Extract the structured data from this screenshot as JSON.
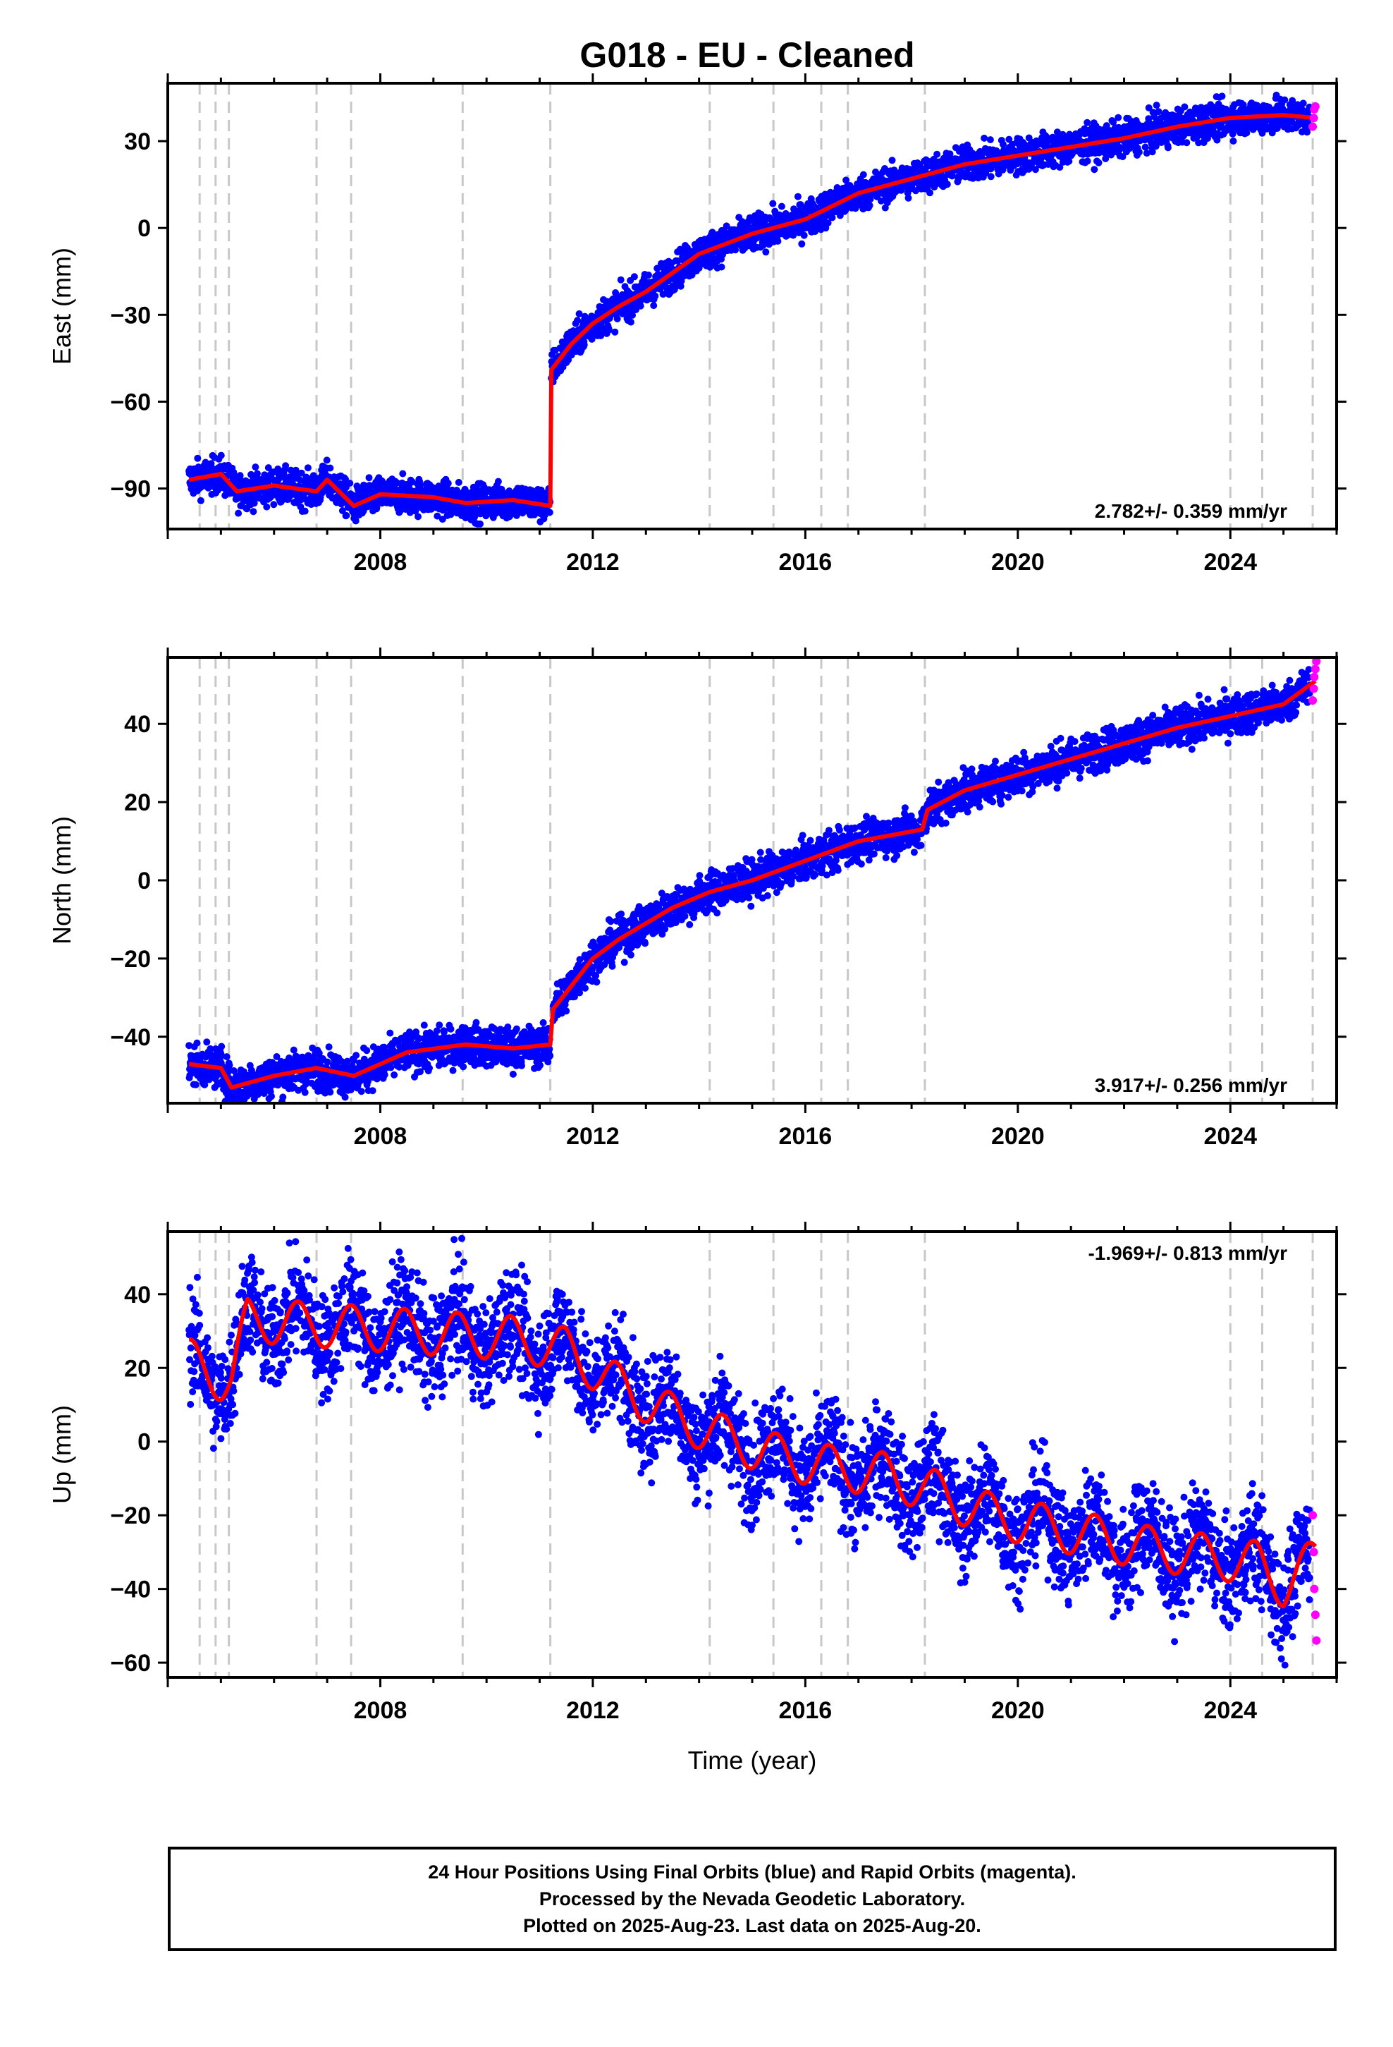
{
  "title": "G018  - EU - Cleaned",
  "colors": {
    "final_points": "#0000ff",
    "rapid_points": "#ff00ff",
    "model_line": "#ff0000",
    "event_lines": "#c8c8c8"
  },
  "footer": {
    "line1": "24 Hour Positions Using Final Orbits (blue) and Rapid Orbits (magenta).",
    "line2": "Processed by the Nevada Geodetic Laboratory.",
    "line3": "Plotted on 2025-Aug-23. Last data on 2025-Aug-20."
  },
  "chart_data": [
    {
      "type": "scatter",
      "ylabel": "East (mm)",
      "xlabel": "",
      "xlim": [
        2004.0,
        2026.0
      ],
      "ylim": [
        -104,
        50
      ],
      "xticks": [
        "2008",
        "2012",
        "2016",
        "2020",
        "2024"
      ],
      "yticks": [
        "30",
        "0",
        "−30",
        "−60",
        "−90"
      ],
      "rate_label": "2.782+/- 0.359 mm/yr",
      "rate_position": "bottom-right",
      "event_lines_x": [
        2004.6,
        2004.9,
        2005.15,
        2006.8,
        2007.45,
        2009.55,
        2011.2,
        2014.2,
        2015.4,
        2016.3,
        2016.8,
        2018.25,
        2024.0,
        2024.6,
        2025.55
      ],
      "model_line": {
        "x": [
          2004.4,
          2005.0,
          2005.3,
          2006.0,
          2006.8,
          2007.0,
          2007.5,
          2008.0,
          2009.0,
          2009.6,
          2010.5,
          2011.2,
          2011.22,
          2011.6,
          2012.0,
          2012.5,
          2013.0,
          2014.0,
          2015.0,
          2016.0,
          2017.0,
          2018.0,
          2019.0,
          2020.0,
          2021.0,
          2022.0,
          2023.0,
          2024.0,
          2025.0,
          2025.6
        ],
        "y": [
          -87,
          -85,
          -91,
          -89,
          -91,
          -87,
          -96,
          -92,
          -93,
          -95,
          -94,
          -96,
          -49,
          -40,
          -33,
          -27,
          -22,
          -9,
          -2,
          3,
          12,
          17,
          22,
          25,
          28,
          31,
          35,
          38,
          39,
          38
        ]
      },
      "final_points": {
        "segments": [
          {
            "x_start": 2004.4,
            "x_end": 2011.2,
            "y_start": -87,
            "y_end": -95,
            "spread": 3
          },
          {
            "x_start": 2011.22,
            "x_end": 2012.0,
            "y_start": -47,
            "y_end": -31,
            "spread": 3
          },
          {
            "x_start": 2012.0,
            "x_end": 2025.5,
            "y_start": -30,
            "y_end": 40,
            "spread": 3
          }
        ]
      },
      "rapid_points": {
        "x": [
          2025.55,
          2025.57,
          2025.58,
          2025.6
        ],
        "y": [
          35,
          38,
          41,
          42
        ]
      }
    },
    {
      "type": "scatter",
      "ylabel": "North (mm)",
      "xlabel": "",
      "xlim": [
        2004.0,
        2026.0
      ],
      "ylim": [
        -57,
        57
      ],
      "xticks": [
        "2008",
        "2012",
        "2016",
        "2020",
        "2024"
      ],
      "yticks": [
        "40",
        "20",
        "0",
        "−20",
        "−40"
      ],
      "rate_label": "3.917+/- 0.256 mm/yr",
      "rate_position": "bottom-right",
      "event_lines_x": [
        2004.6,
        2004.9,
        2005.15,
        2006.8,
        2007.45,
        2009.55,
        2011.2,
        2014.2,
        2015.4,
        2016.3,
        2016.8,
        2018.25,
        2024.0,
        2024.6,
        2025.55
      ],
      "model_line": {
        "x": [
          2004.4,
          2005.0,
          2005.2,
          2006.0,
          2006.8,
          2007.5,
          2008.5,
          2009.6,
          2010.5,
          2011.2,
          2011.25,
          2012.0,
          2012.5,
          2013.5,
          2014.2,
          2015.0,
          2016.0,
          2017.0,
          2018.2,
          2018.3,
          2019.0,
          2020.0,
          2021.0,
          2022.0,
          2023.0,
          2024.0,
          2025.0,
          2025.6
        ],
        "y": [
          -47,
          -48,
          -53,
          -50,
          -48,
          -50,
          -44,
          -42,
          -43,
          -42,
          -33,
          -20,
          -15,
          -7,
          -3,
          0,
          5,
          10,
          13,
          18,
          23,
          27,
          31,
          35,
          39,
          42,
          45,
          51
        ]
      },
      "final_points": {
        "segments": [
          {
            "x_start": 2004.4,
            "x_end": 2011.2,
            "y_start": -47,
            "y_end": -40,
            "spread": 2.5
          },
          {
            "x_start": 2011.25,
            "x_end": 2025.5,
            "y_start": -30,
            "y_end": 45,
            "spread": 2.5
          }
        ]
      },
      "rapid_points": {
        "x": [
          2025.55,
          2025.57,
          2025.58,
          2025.6,
          2025.62
        ],
        "y": [
          46,
          49,
          52,
          54,
          56
        ]
      }
    },
    {
      "type": "scatter",
      "ylabel": "Up (mm)",
      "xlabel": "Time (year)",
      "xlim": [
        2004.0,
        2026.0
      ],
      "ylim": [
        -64,
        57
      ],
      "xticks": [
        "2008",
        "2012",
        "2016",
        "2020",
        "2024"
      ],
      "yticks": [
        "40",
        "20",
        "0",
        "−20",
        "−40",
        "−60"
      ],
      "rate_label": "-1.969+/- 0.813 mm/yr",
      "rate_position": "top-right",
      "event_lines_x": [
        2004.6,
        2004.9,
        2005.15,
        2006.8,
        2007.45,
        2009.55,
        2011.2,
        2014.2,
        2015.4,
        2016.3,
        2016.8,
        2018.25,
        2024.0,
        2024.6,
        2025.55
      ],
      "model_line": {
        "x": [
          2004.4,
          2005.0,
          2005.2,
          2005.5,
          2006.5,
          2007.5,
          2008.5,
          2009.5,
          2010.5,
          2011.5,
          2012.5,
          2013.5,
          2014.5,
          2015.5,
          2016.5,
          2017.5,
          2018.5,
          2019.5,
          2020.5,
          2021.5,
          2022.5,
          2023.5,
          2024.5,
          2025.0,
          2025.6
        ],
        "y": [
          22,
          17,
          17,
          33,
          32,
          31,
          30,
          29,
          28,
          25,
          15,
          7,
          1,
          -4,
          -7,
          -9,
          -14,
          -20,
          -23,
          -26,
          -29,
          -31,
          -33,
          -39,
          -32
        ]
      },
      "seasonal_amplitude": 6,
      "final_points": {
        "segments": [
          {
            "x_start": 2004.4,
            "x_end": 2025.5,
            "y_start": 22,
            "y_end": -36,
            "spread": 7
          }
        ]
      },
      "rapid_points": {
        "x": [
          2025.55,
          2025.57,
          2025.58,
          2025.6,
          2025.62
        ],
        "y": [
          -20,
          -30,
          -40,
          -47,
          -54
        ]
      }
    }
  ]
}
